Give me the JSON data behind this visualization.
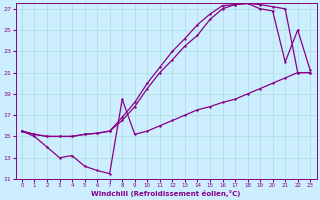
{
  "xlabel": "Windchill (Refroidissement éolien,°C)",
  "xlim": [
    -0.5,
    23.5
  ],
  "ylim": [
    11,
    27.5
  ],
  "xticks": [
    0,
    1,
    2,
    3,
    4,
    5,
    6,
    7,
    8,
    9,
    10,
    11,
    12,
    13,
    14,
    15,
    16,
    17,
    18,
    19,
    20,
    21,
    22,
    23
  ],
  "yticks": [
    11,
    13,
    15,
    17,
    19,
    21,
    23,
    25,
    27
  ],
  "bg_color": "#cceeff",
  "line_color": "#880088",
  "grid_color": "#aadddd",
  "line1_x": [
    0,
    1,
    2,
    3,
    4,
    5,
    6,
    7,
    8,
    9,
    10,
    11,
    12,
    13,
    14,
    15,
    16,
    17,
    18,
    19,
    20,
    21,
    22,
    23
  ],
  "line1_y": [
    15.5,
    15.2,
    15.0,
    15.0,
    15.0,
    15.2,
    15.3,
    15.5,
    16.5,
    17.8,
    19.5,
    21.0,
    22.2,
    23.5,
    24.5,
    26.0,
    27.0,
    27.4,
    27.5,
    27.4,
    27.2,
    27.0,
    21.0,
    21.0
  ],
  "line2_x": [
    0,
    1,
    2,
    3,
    4,
    5,
    6,
    7,
    8,
    9,
    10,
    11,
    12,
    13,
    14,
    15,
    16,
    17,
    18,
    19,
    20,
    21,
    22,
    23
  ],
  "line2_y": [
    15.5,
    15.2,
    15.0,
    15.0,
    15.0,
    15.2,
    15.3,
    15.5,
    16.8,
    18.2,
    20.0,
    21.5,
    23.0,
    24.2,
    25.5,
    26.5,
    27.3,
    27.4,
    27.5,
    27.0,
    26.8,
    22.0,
    25.0,
    21.2
  ],
  "line3_x": [
    0,
    1,
    2,
    3,
    4,
    5,
    6,
    7,
    8,
    9,
    10,
    11,
    12,
    13,
    14,
    15,
    16,
    17,
    18,
    19,
    20,
    21,
    22,
    23
  ],
  "line3_y": [
    15.5,
    15.0,
    14.0,
    13.0,
    13.2,
    12.2,
    11.8,
    11.5,
    18.5,
    15.2,
    15.5,
    16.0,
    16.5,
    17.0,
    17.5,
    17.8,
    18.2,
    18.5,
    19.0,
    19.5,
    20.0,
    20.5,
    21.0,
    21.0
  ]
}
